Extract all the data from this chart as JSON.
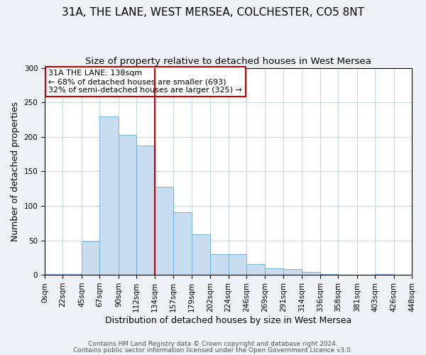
{
  "title": "31A, THE LANE, WEST MERSEA, COLCHESTER, CO5 8NT",
  "subtitle": "Size of property relative to detached houses in West Mersea",
  "xlabel": "Distribution of detached houses by size in West Mersea",
  "ylabel": "Number of detached properties",
  "bin_edges": [
    0,
    22,
    45,
    67,
    90,
    112,
    134,
    157,
    179,
    202,
    224,
    246,
    269,
    291,
    314,
    336,
    358,
    381,
    403,
    426,
    448
  ],
  "bin_labels": [
    "0sqm",
    "22sqm",
    "45sqm",
    "67sqm",
    "90sqm",
    "112sqm",
    "134sqm",
    "157sqm",
    "179sqm",
    "202sqm",
    "224sqm",
    "246sqm",
    "269sqm",
    "291sqm",
    "314sqm",
    "336sqm",
    "358sqm",
    "381sqm",
    "403sqm",
    "426sqm",
    "448sqm"
  ],
  "counts": [
    1,
    1,
    48,
    230,
    203,
    187,
    128,
    91,
    59,
    30,
    30,
    16,
    9,
    8,
    4,
    1,
    0,
    0,
    1,
    0
  ],
  "bar_color": "#c8ddef",
  "bar_edge_color": "#6aaad4",
  "vline_x": 134,
  "vline_color": "#cc0000",
  "ylim": [
    0,
    300
  ],
  "yticks": [
    0,
    50,
    100,
    150,
    200,
    250,
    300
  ],
  "annotation_title": "31A THE LANE: 138sqm",
  "annotation_line1": "← 68% of detached houses are smaller (693)",
  "annotation_line2": "32% of semi-detached houses are larger (325) →",
  "annotation_box_color": "#cc0000",
  "footnote1": "Contains HM Land Registry data © Crown copyright and database right 2024.",
  "footnote2": "Contains public sector information licensed under the Open Government Licence v3.0.",
  "background_color": "#eef2f7",
  "plot_bg_color": "#ffffff",
  "grid_color": "#c5d5e5",
  "title_fontsize": 11,
  "subtitle_fontsize": 9.5,
  "axis_label_fontsize": 9,
  "tick_fontsize": 7.5,
  "annotation_fontsize": 8,
  "footnote_fontsize": 6.5
}
